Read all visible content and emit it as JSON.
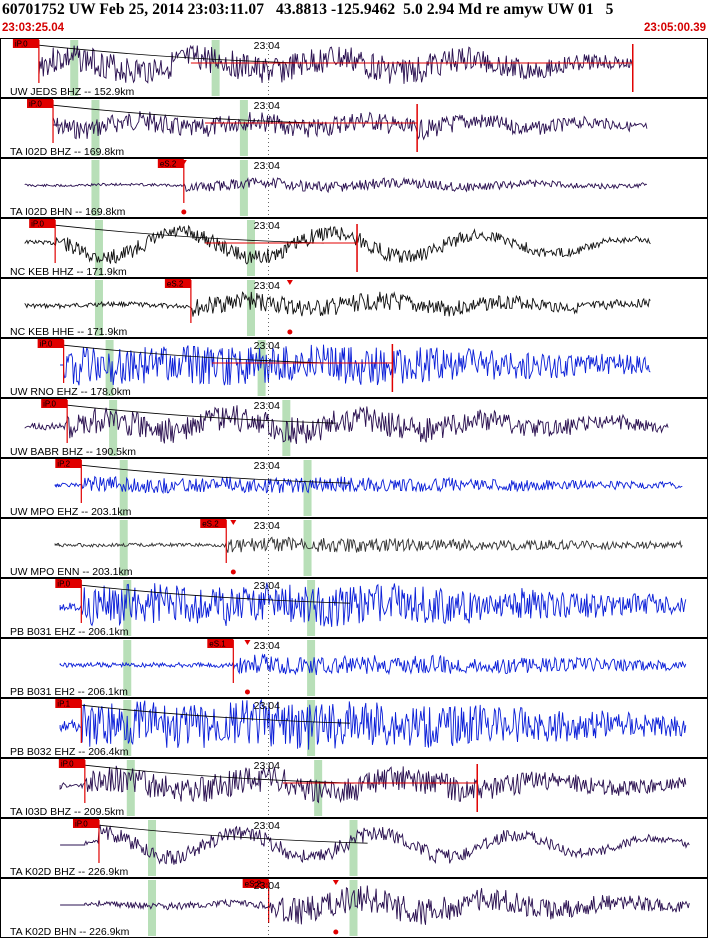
{
  "header": {
    "title": "60701752 UW Feb 25, 2014 23:03:11.07   43.8813 -125.9462  5.0 2.94 Md re amyw UW 01   5",
    "start_time": "23:03:25.04",
    "end_time": "23:05:00.39"
  },
  "colors": {
    "frame": "#000000",
    "pick": "#e00000",
    "arrival_band": "#b8dfb8",
    "travel_curve": "#000000"
  },
  "chart_data": {
    "type": "line",
    "title": "60701752 UW Feb 25, 2014 23:03:11.07   43.8813 -125.9462  5.0 2.94 Md re amyw UW 01   5",
    "x_range": [
      "23:03:25.04",
      "23:05:00.39"
    ],
    "time_tick_label": "23:04",
    "series": [
      {
        "name": "UW JEDS BHZ -- 152.9km",
        "color": "#2a1050",
        "pick": "iP.0",
        "pick_frac": 0.055,
        "signal_start_frac": 0.055,
        "end_frac": 0.895,
        "coda_frac": 0.6,
        "density": 160,
        "amp": 0.42,
        "seed": 3,
        "bands": [
          0.105,
          0.305
        ],
        "has_curve": true,
        "has_level": true,
        "level_start": 0.27,
        "level_end": 0.895
      },
      {
        "name": "TA I02D BHZ -- 169.8km",
        "color": "#2a1050",
        "pick": "iP.0",
        "pick_frac": 0.075,
        "signal_start_frac": 0.075,
        "end_frac": 0.915,
        "coda_frac": 0.6,
        "density": 180,
        "amp": 0.3,
        "seed": 7,
        "bands": [
          0.135,
          0.345
        ],
        "has_curve": true,
        "has_level": true,
        "level_start": 0.29,
        "level_end": 0.59
      },
      {
        "name": "TA I02D BHN -- 169.8km",
        "color": "#2a1050",
        "pick": "eS.2",
        "pick_frac": 0.26,
        "signal_start_frac": 0.035,
        "end_frac": 0.915,
        "coda_frac": 0.55,
        "density": 200,
        "amp": 0.16,
        "seed": 11,
        "bands": [
          0.135,
          0.345
        ],
        "has_curve": false,
        "has_level": false,
        "spike_frac": 0.26
      },
      {
        "name": "NC KEB HHZ -- 171.9km",
        "color": "#111111",
        "pick": "iP.0",
        "pick_frac": 0.078,
        "signal_start_frac": 0.035,
        "end_frac": 0.92,
        "coda_frac": 0.55,
        "density": 110,
        "amp": 0.5,
        "seed": 13,
        "bands": [
          0.14,
          0.355
        ],
        "has_curve": true,
        "has_level": true,
        "level_start": 0.29,
        "level_end": 0.505
      },
      {
        "name": "NC KEB HHE -- 171.9km",
        "color": "#111111",
        "pick": "eS.2",
        "pick_frac": 0.27,
        "signal_start_frac": 0.035,
        "end_frac": 0.92,
        "coda_frac": 0.55,
        "density": 150,
        "amp": 0.28,
        "seed": 17,
        "bands": [
          0.14,
          0.355
        ],
        "has_curve": false,
        "has_level": false,
        "spike_frac": 0.41
      },
      {
        "name": "UW RNO EHZ -- 178.0km",
        "color": "#0b1fd8",
        "pick": "iP.0",
        "pick_frac": 0.09,
        "signal_start_frac": 0.09,
        "end_frac": 0.92,
        "coda_frac": 0.55,
        "density": 230,
        "amp": 0.38,
        "seed": 19,
        "bands": [
          0.155,
          0.37
        ],
        "has_curve": true,
        "has_level": true,
        "level_start": 0.3,
        "level_end": 0.555
      },
      {
        "name": "UW BABR BHZ -- 190.5km",
        "color": "#2a1050",
        "pick": "iP.0",
        "pick_frac": 0.095,
        "signal_start_frac": 0.035,
        "end_frac": 0.945,
        "coda_frac": 0.5,
        "density": 140,
        "amp": 0.42,
        "seed": 23,
        "bands": [
          0.16,
          0.405
        ],
        "has_curve": true,
        "has_level": false
      },
      {
        "name": "UW MPO EHZ -- 203.1km",
        "color": "#0b1fd8",
        "pick": "iP.2",
        "pick_frac": 0.115,
        "signal_start_frac": 0.078,
        "end_frac": 0.965,
        "coda_frac": 0.5,
        "density": 320,
        "amp": 0.15,
        "seed": 29,
        "bands": [
          0.175,
          0.435
        ],
        "has_curve": true,
        "has_level": false
      },
      {
        "name": "UW MPO ENN -- 203.1km",
        "color": "#333333",
        "pick": "eS.2",
        "pick_frac": 0.32,
        "signal_start_frac": 0.078,
        "end_frac": 0.965,
        "coda_frac": 0.48,
        "density": 330,
        "amp": 0.14,
        "seed": 31,
        "bands": [
          0.175,
          0.435
        ],
        "has_curve": false,
        "has_level": false,
        "spike_frac": 0.33
      },
      {
        "name": "PB B031 EHZ -- 206.1km",
        "color": "#0b1fd8",
        "pick": "iP.0",
        "pick_frac": 0.115,
        "signal_start_frac": 0.085,
        "end_frac": 0.97,
        "coda_frac": 0.55,
        "density": 280,
        "amp": 0.4,
        "seed": 37,
        "bands": [
          0.18,
          0.44
        ],
        "has_curve": true,
        "has_level": false
      },
      {
        "name": "PB B031 EH2 -- 206.1km",
        "color": "#0b1fd8",
        "pick": "eS.1",
        "pick_frac": 0.33,
        "signal_start_frac": 0.085,
        "end_frac": 0.97,
        "coda_frac": 0.55,
        "density": 280,
        "amp": 0.2,
        "seed": 41,
        "bands": [
          0.18,
          0.44
        ],
        "has_curve": false,
        "has_level": false,
        "spike_frac": 0.35
      },
      {
        "name": "PB B032 EHZ -- 206.4km",
        "color": "#0b1fd8",
        "pick": "iP.1",
        "pick_frac": 0.115,
        "signal_start_frac": 0.085,
        "end_frac": 0.97,
        "coda_frac": 0.55,
        "density": 290,
        "amp": 0.45,
        "seed": 43,
        "bands": [
          0.18,
          0.44
        ],
        "has_curve": true,
        "has_level": false
      },
      {
        "name": "TA I03D BHZ -- 209.5km",
        "color": "#2a1050",
        "pick": "iP.0",
        "pick_frac": 0.12,
        "signal_start_frac": 0.085,
        "end_frac": 0.97,
        "coda_frac": 0.6,
        "density": 180,
        "amp": 0.4,
        "seed": 47,
        "bands": [
          0.185,
          0.45
        ],
        "has_curve": true,
        "has_level": true,
        "level_start": 0.4,
        "level_end": 0.675
      },
      {
        "name": "TA K02D BHZ -- 226.9km",
        "color": "#2a1050",
        "pick": "iP.0",
        "pick_frac": 0.14,
        "signal_start_frac": 0.12,
        "end_frac": 0.975,
        "coda_frac": 0.6,
        "density": 80,
        "amp": 0.5,
        "seed": 53,
        "bands": [
          0.215,
          0.5
        ],
        "has_curve": true,
        "has_level": false
      },
      {
        "name": "TA K02D BHN -- 226.9km",
        "color": "#2a1050",
        "pick": "eS.2",
        "pick_frac": 0.38,
        "signal_start_frac": 0.12,
        "end_frac": 0.975,
        "coda_frac": 0.6,
        "density": 150,
        "amp": 0.42,
        "seed": 59,
        "bands": [
          0.215,
          0.5
        ],
        "has_curve": false,
        "has_level": false,
        "spike_frac": 0.475
      }
    ]
  }
}
